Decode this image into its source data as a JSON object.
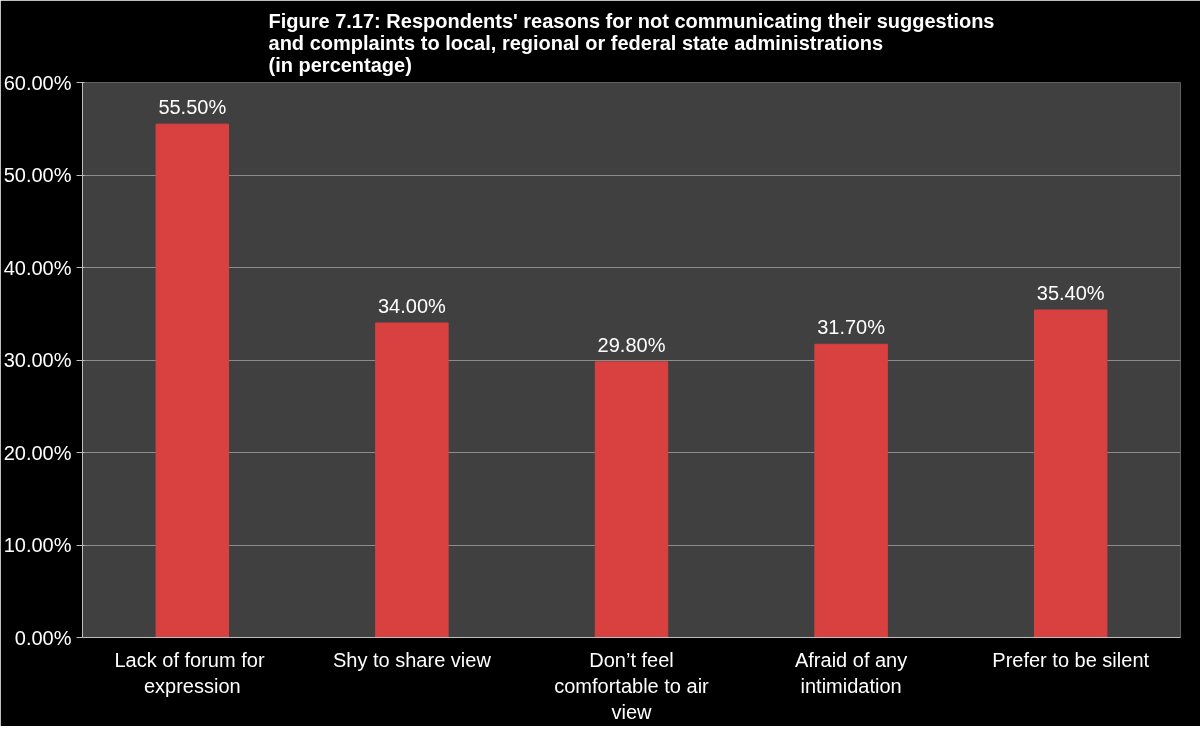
{
  "chart_data": {
    "type": "bar",
    "title": "Figure 7.17: Respondents' reasons for not communicating their suggestions\nand complaints to local, regional or federal state administrations\n(in percentage)",
    "categories": [
      "Lack of  forum for expression",
      "Shy to share view",
      "Don’t feel comfortable to air view",
      "Afraid of any intimidation",
      "Prefer to be silent"
    ],
    "values": [
      55.5,
      34.0,
      29.8,
      31.7,
      35.4
    ],
    "value_labels": [
      "55.50%",
      "34.00%",
      "29.80%",
      "31.70%",
      "35.40%"
    ],
    "color": "#d94141",
    "ylim": [
      0,
      60
    ],
    "yticks": [
      {
        "value": 0,
        "label": "0.00%"
      },
      {
        "value": 10,
        "label": "10.00%"
      },
      {
        "value": 20,
        "label": "20.00%"
      },
      {
        "value": 30,
        "label": "30.00%"
      },
      {
        "value": 40,
        "label": "40.00%"
      },
      {
        "value": 50,
        "label": "50.00%"
      },
      {
        "value": 60,
        "label": "60.00%"
      }
    ],
    "grid": "y"
  }
}
